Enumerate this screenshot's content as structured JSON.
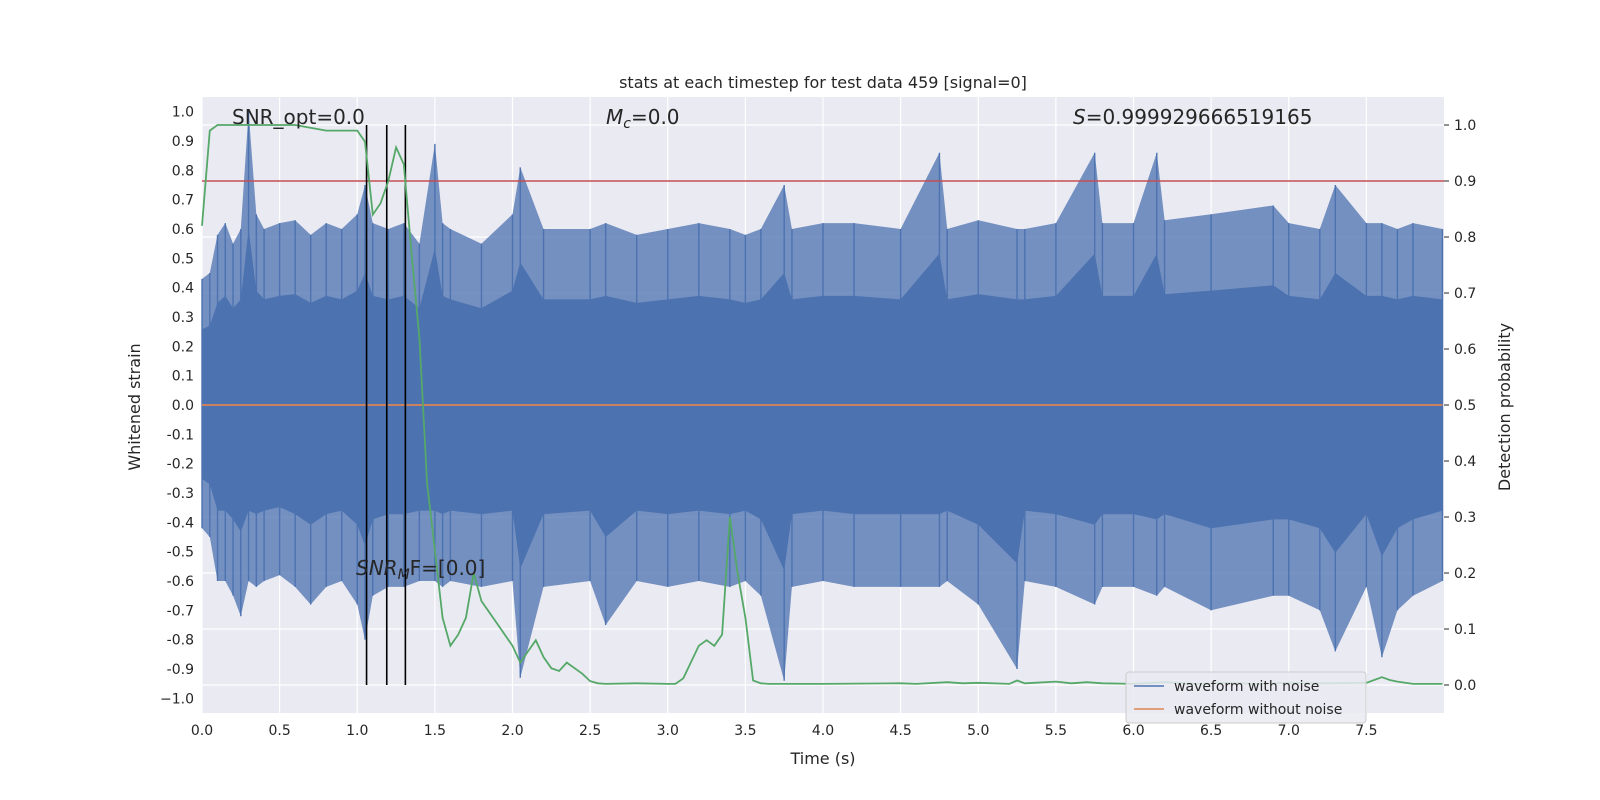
{
  "chart_data": {
    "type": "line",
    "title": "stats at each timestep for test data 459 [signal=0]",
    "xlabel": "Time (s)",
    "ylabel_left": "Whitened strain",
    "ylabel_right": "Detection probability",
    "xlim": [
      0,
      8
    ],
    "ylim_left": [
      -1.05,
      1.05
    ],
    "ylim_right": [
      -0.05,
      1.05
    ],
    "x_ticks": [
      "0.0",
      "0.5",
      "1.0",
      "1.5",
      "2.0",
      "2.5",
      "3.0",
      "3.5",
      "4.0",
      "4.5",
      "5.0",
      "5.5",
      "6.0",
      "6.5",
      "7.0",
      "7.5"
    ],
    "y_left_ticks": [
      "1.0",
      "0.9",
      "0.8",
      "0.7",
      "0.6",
      "0.5",
      "0.4",
      "0.3",
      "0.2",
      "0.1",
      "0.0",
      "-0.1",
      "-0.2",
      "-0.3",
      "-0.4",
      "-0.5",
      "-0.6",
      "-0.7",
      "-0.8",
      "-0.9",
      "−1.0"
    ],
    "y_right_ticks": [
      "1.0",
      "0.9",
      "0.8",
      "0.7",
      "0.6",
      "0.5",
      "0.4",
      "0.3",
      "0.2",
      "0.1",
      "0.0"
    ],
    "grid": true,
    "legend_position": "bottom-right",
    "annotations": {
      "snr_opt": "SNR_opt=0.0",
      "mc": "Mc=0.0",
      "mc_main": "M",
      "mc_sub": "c",
      "mc_rest": "=0.0",
      "s_main": "S",
      "s_rest": "=0.999929666519165",
      "snr_mf_main": "SNR",
      "snr_mf_sub": "M",
      "snr_mf_rest": "F=[0.0]"
    },
    "series": [
      {
        "name": "waveform with noise",
        "color": "#4c72b0",
        "axis": "left",
        "envelope_x": [
          0.0,
          0.05,
          0.1,
          0.15,
          0.2,
          0.25,
          0.3,
          0.35,
          0.4,
          0.5,
          0.6,
          0.7,
          0.8,
          0.9,
          1.0,
          1.05,
          1.1,
          1.2,
          1.3,
          1.4,
          1.5,
          1.55,
          1.6,
          1.8,
          2.0,
          2.05,
          2.2,
          2.5,
          2.6,
          2.8,
          3.0,
          3.2,
          3.4,
          3.5,
          3.6,
          3.75,
          3.8,
          4.0,
          4.2,
          4.5,
          4.75,
          4.8,
          5.0,
          5.25,
          5.3,
          5.5,
          5.75,
          5.8,
          6.0,
          6.15,
          6.2,
          6.5,
          6.9,
          7.0,
          7.2,
          7.3,
          7.5,
          7.6,
          7.7,
          7.8,
          7.99
        ],
        "envelope_max": [
          0.43,
          0.45,
          0.58,
          0.62,
          0.55,
          0.6,
          1.0,
          0.65,
          0.6,
          0.62,
          0.63,
          0.58,
          0.62,
          0.6,
          0.65,
          0.75,
          0.62,
          0.6,
          0.62,
          0.55,
          0.89,
          0.62,
          0.6,
          0.55,
          0.65,
          0.81,
          0.6,
          0.6,
          0.62,
          0.58,
          0.6,
          0.62,
          0.6,
          0.58,
          0.6,
          0.75,
          0.6,
          0.62,
          0.62,
          0.6,
          0.86,
          0.6,
          0.63,
          0.6,
          0.6,
          0.62,
          0.86,
          0.62,
          0.62,
          0.86,
          0.63,
          0.65,
          0.68,
          0.62,
          0.6,
          0.75,
          0.62,
          0.62,
          0.6,
          0.62,
          0.6
        ],
        "envelope_min": [
          -0.42,
          -0.45,
          -0.6,
          -0.6,
          -0.65,
          -0.72,
          -0.6,
          -0.62,
          -0.6,
          -0.58,
          -0.62,
          -0.68,
          -0.62,
          -0.6,
          -0.68,
          -0.8,
          -0.65,
          -0.62,
          -0.62,
          -0.6,
          -0.6,
          -0.62,
          -0.6,
          -0.62,
          -0.6,
          -0.93,
          -0.62,
          -0.6,
          -0.75,
          -0.6,
          -0.62,
          -0.6,
          -0.62,
          -0.6,
          -0.65,
          -0.94,
          -0.62,
          -0.6,
          -0.62,
          -0.62,
          -0.62,
          -0.6,
          -0.68,
          -0.9,
          -0.6,
          -0.62,
          -0.68,
          -0.62,
          -0.62,
          -0.65,
          -0.62,
          -0.7,
          -0.65,
          -0.65,
          -0.7,
          -0.84,
          -0.62,
          -0.86,
          -0.7,
          -0.65,
          -0.6
        ]
      },
      {
        "name": "waveform without noise",
        "color": "#dd8452",
        "axis": "left",
        "x": [
          0.0,
          7.99
        ],
        "values": [
          0.0,
          0.0
        ]
      },
      {
        "name": "",
        "color": "#55a868",
        "axis": "right",
        "x": [
          0.0,
          0.05,
          0.1,
          0.3,
          0.6,
          0.8,
          0.9,
          1.0,
          1.05,
          1.1,
          1.15,
          1.2,
          1.25,
          1.3,
          1.35,
          1.4,
          1.45,
          1.5,
          1.55,
          1.6,
          1.65,
          1.7,
          1.75,
          1.8,
          1.85,
          1.9,
          2.0,
          2.05,
          2.1,
          2.15,
          2.2,
          2.25,
          2.3,
          2.35,
          2.4,
          2.45,
          2.5,
          2.55,
          2.6,
          2.8,
          3.0,
          3.05,
          3.1,
          3.2,
          3.25,
          3.3,
          3.35,
          3.4,
          3.45,
          3.5,
          3.55,
          3.6,
          3.65,
          3.8,
          4.0,
          4.5,
          4.6,
          4.8,
          4.9,
          5.0,
          5.2,
          5.25,
          5.3,
          5.5,
          5.6,
          5.7,
          5.8,
          6.0,
          6.2,
          6.4,
          6.6,
          6.8,
          7.0,
          7.2,
          7.5,
          7.6,
          7.65,
          7.7,
          7.8,
          7.99
        ],
        "values": [
          0.82,
          0.99,
          1.0,
          1.0,
          1.0,
          0.99,
          0.99,
          0.99,
          0.97,
          0.84,
          0.86,
          0.9,
          0.96,
          0.93,
          0.77,
          0.62,
          0.36,
          0.24,
          0.12,
          0.07,
          0.09,
          0.12,
          0.2,
          0.15,
          0.13,
          0.11,
          0.07,
          0.04,
          0.06,
          0.08,
          0.05,
          0.03,
          0.025,
          0.04,
          0.03,
          0.02,
          0.007,
          0.003,
          0.002,
          0.003,
          0.002,
          0.002,
          0.012,
          0.07,
          0.08,
          0.07,
          0.09,
          0.3,
          0.2,
          0.12,
          0.008,
          0.003,
          0.002,
          0.002,
          0.002,
          0.003,
          0.002,
          0.005,
          0.003,
          0.004,
          0.002,
          0.008,
          0.003,
          0.006,
          0.003,
          0.005,
          0.003,
          0.002,
          0.005,
          0.002,
          0.004,
          0.002,
          0.004,
          0.003,
          0.004,
          0.014,
          0.009,
          0.006,
          0.002,
          0.002
        ]
      }
    ],
    "threshold_line": {
      "value": 0.9,
      "axis": "right",
      "color": "#c44e52"
    },
    "vertical_lines_x": [
      1.06,
      1.19,
      1.31
    ],
    "vertical_lines_color": "#000000"
  }
}
